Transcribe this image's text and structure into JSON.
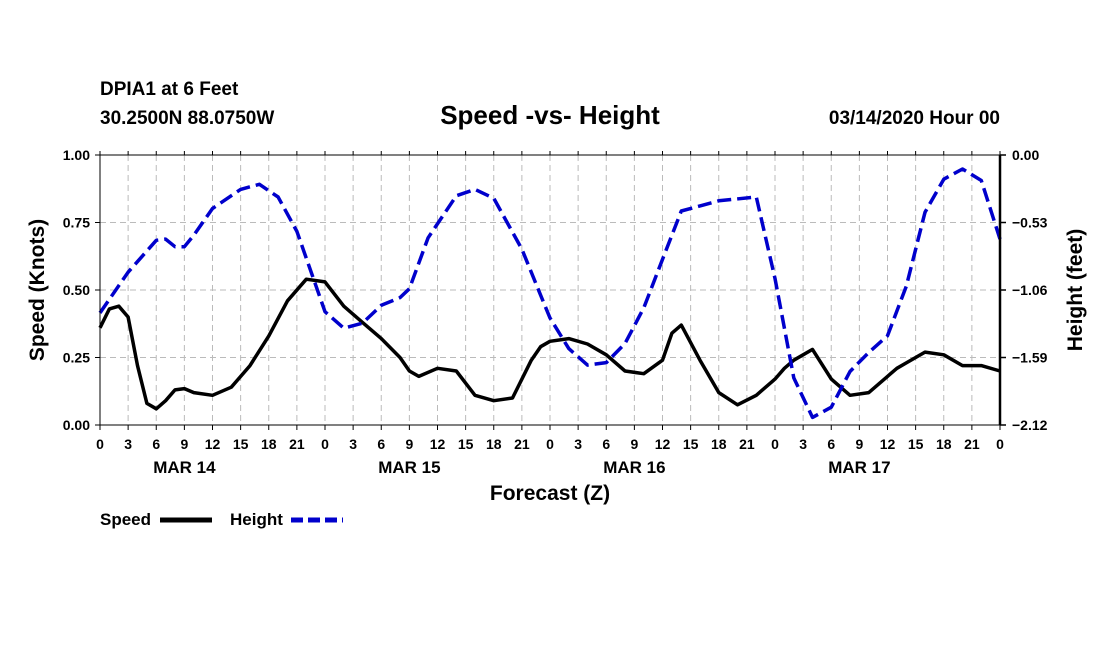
{
  "header": {
    "station": "DPIA1 at 6 Feet",
    "coords": "30.2500N 88.0750W",
    "datetime": "03/14/2020 Hour 00"
  },
  "chart_data": {
    "type": "line",
    "title": "Speed -vs- Height",
    "xlabel": "Forecast (Z)",
    "ylabel_left": "Speed (Knots)",
    "ylabel_right": "Height (feet)",
    "ylim_left": [
      0,
      1.0
    ],
    "ylim_right": [
      -2.12,
      0.0
    ],
    "xlim_hours": [
      0,
      96
    ],
    "grid": true,
    "left_ticks": [
      "0.00",
      "0.25",
      "0.50",
      "0.75",
      "1.00"
    ],
    "left_tick_values": [
      0,
      0.25,
      0.5,
      0.75,
      1.0
    ],
    "right_ticks": [
      "0.00",
      "−0.53",
      "−1.06",
      "−1.59",
      "−2.12"
    ],
    "right_tick_values": [
      0.0,
      -0.53,
      -1.06,
      -1.59,
      -2.12
    ],
    "x_tick_labels": [
      "0",
      "3",
      "6",
      "9",
      "12",
      "15",
      "18",
      "21",
      "0",
      "3",
      "6",
      "9",
      "12",
      "15",
      "18",
      "21",
      "0",
      "3",
      "6",
      "9",
      "12",
      "15",
      "18",
      "21",
      "0",
      "3",
      "6",
      "9",
      "12",
      "15",
      "18",
      "21",
      "0"
    ],
    "day_labels": [
      {
        "label": "MAR 14",
        "hour": 9
      },
      {
        "label": "MAR 15",
        "hour": 33
      },
      {
        "label": "MAR 16",
        "hour": 57
      },
      {
        "label": "MAR 17",
        "hour": 81
      }
    ],
    "series": [
      {
        "name": "Speed",
        "axis": "left",
        "color": "#000000",
        "dash": "solid",
        "hours": [
          0,
          1,
          2,
          3,
          4,
          5,
          6,
          7,
          8,
          9,
          10,
          12,
          14,
          16,
          18,
          20,
          22,
          24,
          26,
          28,
          30,
          32,
          33,
          34,
          36,
          38,
          40,
          42,
          44,
          46,
          47,
          48,
          50,
          52,
          54,
          56,
          58,
          60,
          61,
          62,
          64,
          66,
          68,
          70,
          72,
          73,
          74,
          76,
          78,
          80,
          82,
          84,
          85,
          86,
          88,
          90,
          92,
          94,
          96
        ],
        "values": [
          0.36,
          0.43,
          0.44,
          0.4,
          0.22,
          0.08,
          0.06,
          0.09,
          0.13,
          0.135,
          0.12,
          0.11,
          0.14,
          0.22,
          0.33,
          0.46,
          0.54,
          0.53,
          0.44,
          0.38,
          0.32,
          0.25,
          0.2,
          0.18,
          0.21,
          0.2,
          0.11,
          0.09,
          0.1,
          0.24,
          0.29,
          0.31,
          0.32,
          0.3,
          0.26,
          0.2,
          0.19,
          0.24,
          0.34,
          0.37,
          0.24,
          0.12,
          0.075,
          0.11,
          0.17,
          0.21,
          0.24,
          0.28,
          0.17,
          0.11,
          0.12,
          0.18,
          0.21,
          0.23,
          0.27,
          0.26,
          0.22,
          0.22,
          0.2
        ]
      },
      {
        "name": "Height",
        "axis": "right",
        "color": "#0000cc",
        "dash": "dashed",
        "hours": [
          0,
          3,
          6,
          7,
          8,
          9,
          10,
          12,
          15,
          17,
          19,
          21,
          24,
          26,
          28,
          30,
          32,
          33,
          35,
          38,
          40,
          42,
          45,
          47,
          48,
          50,
          52,
          54,
          56,
          58,
          60,
          62,
          64,
          66,
          70,
          72,
          74,
          76,
          78,
          80,
          82,
          84,
          86,
          88,
          90,
          92,
          94,
          96
        ],
        "values": [
          -1.24,
          -0.92,
          -0.67,
          -0.66,
          -0.72,
          -0.72,
          -0.63,
          -0.42,
          -0.27,
          -0.23,
          -0.33,
          -0.6,
          -1.23,
          -1.36,
          -1.32,
          -1.18,
          -1.12,
          -1.05,
          -0.65,
          -0.32,
          -0.27,
          -0.34,
          -0.74,
          -1.1,
          -1.28,
          -1.52,
          -1.65,
          -1.63,
          -1.48,
          -1.2,
          -0.82,
          -0.44,
          -0.4,
          -0.36,
          -0.33,
          -0.97,
          -1.75,
          -2.06,
          -1.98,
          -1.7,
          -1.55,
          -1.42,
          -1.03,
          -0.45,
          -0.19,
          -0.11,
          -0.2,
          -0.66
        ]
      }
    ],
    "legend": [
      {
        "label": "Speed",
        "color": "#000000",
        "dash": "solid"
      },
      {
        "label": "Height",
        "color": "#0000cc",
        "dash": "dashed"
      }
    ]
  }
}
